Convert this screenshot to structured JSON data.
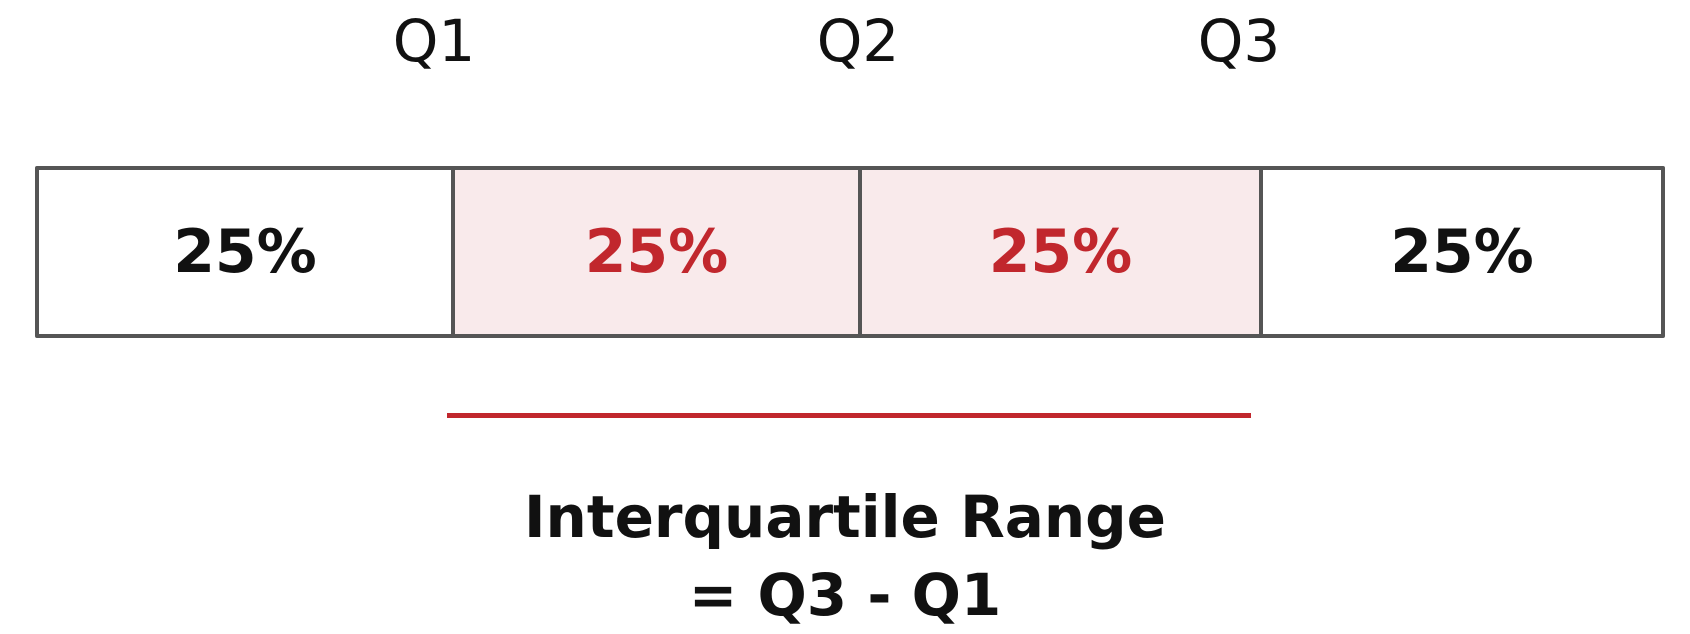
{
  "quartile_labels": [
    "Q1",
    "Q2",
    "Q3"
  ],
  "segments": [
    {
      "label": "25%",
      "highlighted": false
    },
    {
      "label": "25%",
      "highlighted": true
    },
    {
      "label": "25%",
      "highlighted": true
    },
    {
      "label": "25%",
      "highlighted": false
    }
  ],
  "caption": {
    "line1": "Interquartile Range",
    "line2": "= Q3 - Q1"
  },
  "colors": {
    "highlight_text": "#c1272d",
    "highlight_fill": "#f9eaeb",
    "border": "#555555",
    "range_line": "#c1272d"
  }
}
